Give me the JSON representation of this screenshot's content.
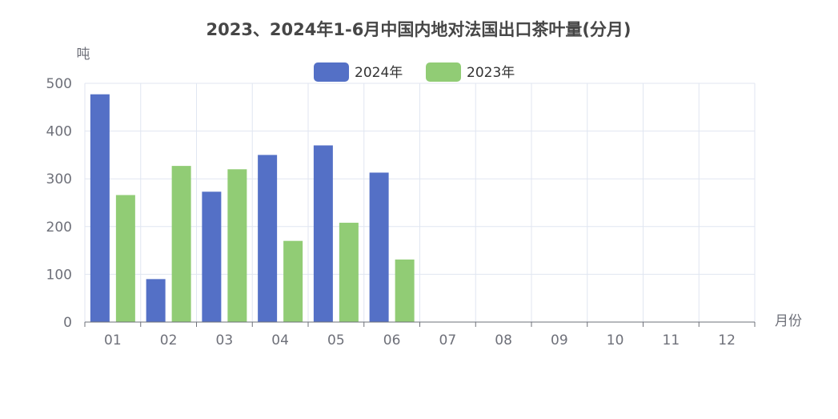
{
  "chart_data": {
    "type": "bar",
    "title": "2023、2024年1-6月中国内地对法国出口茶叶量(分月)",
    "xlabel": "月份",
    "ylabel": "吨",
    "categories": [
      "01",
      "02",
      "03",
      "04",
      "05",
      "06",
      "07",
      "08",
      "09",
      "10",
      "11",
      "12"
    ],
    "ylim": [
      0,
      500
    ],
    "yticks": [
      0,
      100,
      200,
      300,
      400,
      500
    ],
    "grid": true,
    "legend_position": "top-center",
    "series": [
      {
        "name": "2024年",
        "color": "#5470c6",
        "values": [
          477,
          90,
          273,
          350,
          370,
          313,
          null,
          null,
          null,
          null,
          null,
          null
        ]
      },
      {
        "name": "2023年",
        "color": "#91cc75",
        "values": [
          266,
          327,
          320,
          170,
          208,
          131,
          null,
          null,
          null,
          null,
          null,
          null
        ]
      }
    ]
  }
}
